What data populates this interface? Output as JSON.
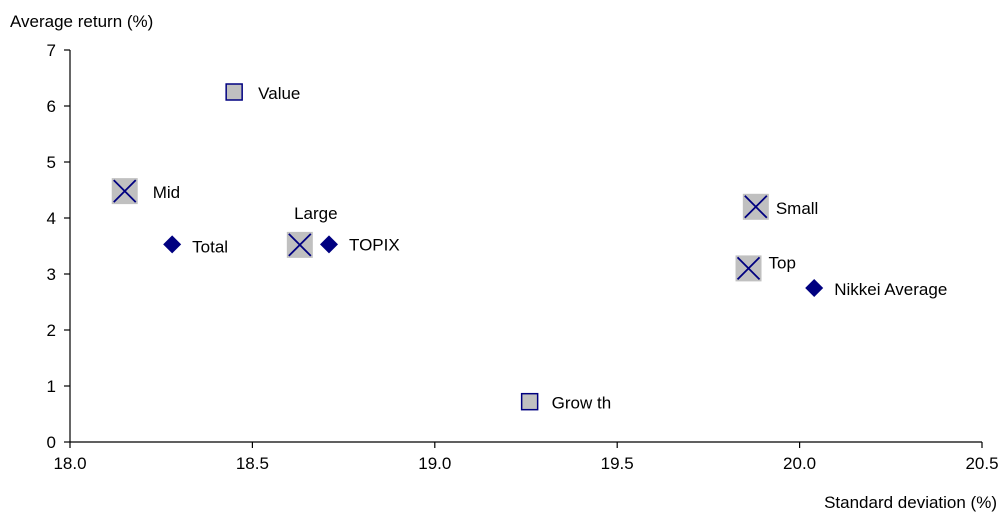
{
  "chart_data": {
    "type": "scatter",
    "title": "",
    "xlabel": "Standard deviation (%)",
    "ylabel": "Average return (%)",
    "xlim": [
      18.0,
      20.5
    ],
    "ylim": [
      0,
      7
    ],
    "x_ticks": [
      "18.0",
      "18.5",
      "19.0",
      "19.5",
      "20.0",
      "20.5"
    ],
    "y_ticks": [
      "0",
      "1",
      "2",
      "3",
      "4",
      "5",
      "6",
      "7"
    ],
    "grid": false,
    "legend": "none",
    "colors": {
      "diamond": "#000080",
      "box_fill": "#c0c0c0",
      "box_stroke": "#000080",
      "axis": "#000000"
    },
    "points": [
      {
        "label": "Value",
        "x": 18.45,
        "y": 6.25,
        "marker": "square"
      },
      {
        "label": "Mid",
        "x": 18.15,
        "y": 4.48,
        "marker": "x-box"
      },
      {
        "label": "Total",
        "x": 18.28,
        "y": 3.53,
        "marker": "diamond"
      },
      {
        "label": "Large",
        "x": 18.63,
        "y": 3.52,
        "marker": "x-box"
      },
      {
        "label": "TOPIX",
        "x": 18.71,
        "y": 3.53,
        "marker": "diamond"
      },
      {
        "label": "Grow th",
        "x": 19.26,
        "y": 0.72,
        "marker": "square"
      },
      {
        "label": "Small",
        "x": 19.88,
        "y": 4.2,
        "marker": "x-box"
      },
      {
        "label": "Top",
        "x": 19.86,
        "y": 3.1,
        "marker": "x-box"
      },
      {
        "label": "Nikkei Average",
        "x": 20.04,
        "y": 2.75,
        "marker": "diamond"
      }
    ]
  }
}
